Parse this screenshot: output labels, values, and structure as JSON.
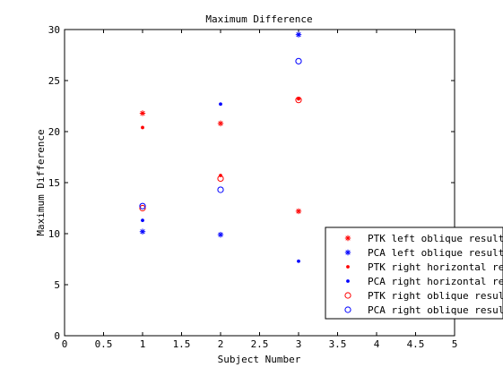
{
  "chart_data": {
    "type": "scatter",
    "title": "Maximum Difference",
    "xlabel": "Subject Number",
    "ylabel": "Maximum Difference",
    "xlim": [
      0,
      5
    ],
    "ylim": [
      0,
      30
    ],
    "x_ticks": [
      0,
      0.5,
      1,
      1.5,
      2,
      2.5,
      3,
      3.5,
      4,
      4.5,
      5
    ],
    "x_tick_labels": [
      "0",
      "0.5",
      "1",
      "1.5",
      "2",
      "2.5",
      "3",
      "3.5",
      "4",
      "4.5",
      "5"
    ],
    "y_ticks": [
      0,
      5,
      10,
      15,
      20,
      25,
      30
    ],
    "y_tick_labels": [
      "0",
      "5",
      "10",
      "15",
      "20",
      "25",
      "30"
    ],
    "grid": false,
    "legend_position": "bottom-right",
    "series": [
      {
        "name": "PTK left oblique result",
        "marker": "star",
        "color": "#ff0000",
        "points": [
          [
            1,
            21.8
          ],
          [
            2,
            20.8
          ],
          [
            3,
            12.2
          ]
        ]
      },
      {
        "name": "PCA left oblique result",
        "marker": "star",
        "color": "#0000ff",
        "points": [
          [
            1,
            10.2
          ],
          [
            2,
            9.9
          ],
          [
            3,
            29.5
          ]
        ]
      },
      {
        "name": "PTK right horizontal resul",
        "marker": "dot",
        "color": "#ff0000",
        "points": [
          [
            1,
            20.4
          ],
          [
            2,
            15.7
          ],
          [
            3,
            23.2
          ]
        ]
      },
      {
        "name": "PCA right horizontal result",
        "marker": "dot",
        "color": "#0000ff",
        "points": [
          [
            1,
            11.3
          ],
          [
            2,
            22.7
          ],
          [
            3,
            7.3
          ]
        ]
      },
      {
        "name": "PTK right oblique result",
        "marker": "circle",
        "color": "#ff0000",
        "points": [
          [
            1,
            12.5
          ],
          [
            2,
            15.4
          ],
          [
            3,
            23.1
          ]
        ]
      },
      {
        "name": "PCA right oblique result",
        "marker": "circle",
        "color": "#0000ff",
        "points": [
          [
            1,
            12.7
          ],
          [
            2,
            14.3
          ],
          [
            3,
            26.9
          ]
        ]
      }
    ]
  }
}
